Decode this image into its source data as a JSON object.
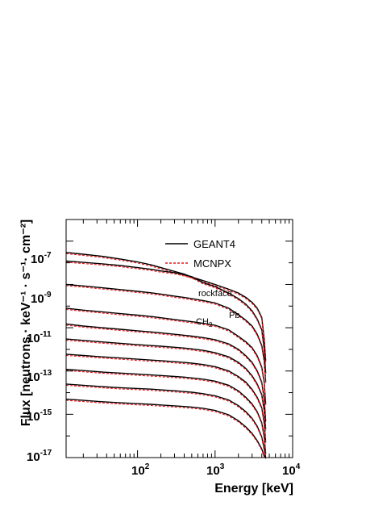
{
  "chart_data": {
    "type": "line",
    "xscale": "log",
    "yscale": "log",
    "xlim": [
      12,
      10000
    ],
    "ylim": [
      1e-17,
      1e-06
    ],
    "x_ticks": [
      {
        "base": "10",
        "exp": "2",
        "value": 100
      },
      {
        "base": "10",
        "exp": "3",
        "value": 1000
      },
      {
        "base": "10",
        "exp": "4",
        "value": 10000
      }
    ],
    "y_ticks": [
      {
        "base": "10",
        "exp": "-7",
        "value": 1e-07
      },
      {
        "base": "10",
        "exp": "-9",
        "value": 1e-09
      },
      {
        "base": "10",
        "exp": "-11",
        "value": 1e-11
      },
      {
        "base": "10",
        "exp": "-13",
        "value": 1e-13
      },
      {
        "base": "10",
        "exp": "-15",
        "value": 1e-15
      },
      {
        "base": "10",
        "exp": "-17",
        "value": 1e-17
      }
    ],
    "xlabel": "Energy [keV]",
    "ylabel": "Flux [neutrons · keV⁻¹ · s⁻¹· cm⁻²]",
    "legend": {
      "placement": "top-right",
      "entries": [
        {
          "label": "GEANT4",
          "style": "solid",
          "color": "#000000"
        },
        {
          "label": "MCNPX",
          "style": "dashed",
          "color": "#e8161b"
        }
      ]
    },
    "annotations": [
      {
        "text": "rockface",
        "x": 620,
        "y": 1e-09
      },
      {
        "text": "Pb",
        "x": 2000,
        "y": 2.2e-10
      },
      {
        "text": "CH",
        "sub": "2",
        "x": 440,
        "y": 8e-11
      }
    ],
    "curve_x": [
      12,
      20,
      35,
      60,
      100,
      150,
      200,
      300,
      400,
      500,
      700,
      1000,
      1500,
      2000,
      2500,
      3000,
      3500,
      4000,
      4300,
      4500
    ],
    "series": [
      {
        "label": "rockface",
        "y": [
          3e-08,
          2.5e-08,
          2e-08,
          1.5e-08,
          1.1e-08,
          8e-09,
          6e-09,
          4e-09,
          3e-09,
          2.2e-09,
          1.5e-09,
          1e-09,
          6e-10,
          4e-10,
          2.5e-10,
          1.5e-10,
          8e-11,
          3e-11,
          3e-12,
          3e-13
        ]
      },
      {
        "y": [
          1.2e-08,
          1.05e-08,
          9e-09,
          7.5e-09,
          6e-09,
          5e-09,
          4.2e-09,
          3.5e-09,
          2.8e-09,
          2.3e-09,
          1.2e-09,
          8e-10,
          4e-10,
          2.2e-10,
          1.2e-10,
          6e-11,
          2.5e-11,
          8e-12,
          1e-12,
          8e-14
        ]
      },
      {
        "y": [
          1e-09,
          8.5e-10,
          7e-10,
          5.8e-10,
          4.8e-10,
          4.1e-10,
          3.6e-10,
          2.9e-10,
          2.5e-10,
          2.2e-10,
          1.8e-10,
          1.4e-10,
          8e-11,
          4e-11,
          2.2e-11,
          1.2e-11,
          5e-12,
          1.5e-12,
          3e-13,
          3e-14
        ]
      },
      {
        "y": [
          8e-11,
          6.5e-11,
          5.4e-11,
          4.5e-11,
          3.8e-11,
          3.3e-11,
          2.9e-11,
          2.4e-11,
          2.1e-11,
          1.9e-11,
          1.6e-11,
          1.3e-11,
          8e-12,
          4e-12,
          2.2e-12,
          1.2e-12,
          5e-13,
          1.5e-13,
          3e-14,
          3e-15
        ]
      },
      {
        "y": [
          1.5e-11,
          1.2e-11,
          1e-11,
          8.5e-12,
          7.2e-12,
          6.4e-12,
          5.8e-12,
          5e-12,
          4.5e-12,
          4.1e-12,
          3.5e-12,
          2.8e-12,
          1.8e-12,
          1e-12,
          5e-13,
          2.5e-13,
          1e-13,
          3e-14,
          5e-15,
          5e-16
        ]
      },
      {
        "y": [
          3e-12,
          2.6e-12,
          2.2e-12,
          1.9e-12,
          1.65e-12,
          1.5e-12,
          1.4e-12,
          1.25e-12,
          1.15e-12,
          1.05e-12,
          9e-13,
          7e-13,
          4.5e-13,
          2.5e-13,
          1.3e-13,
          6e-14,
          2.5e-14,
          8e-15,
          1.5e-15,
          2e-16
        ]
      },
      {
        "y": [
          6e-13,
          5.2e-13,
          4.5e-13,
          4e-13,
          3.5e-13,
          3.2e-13,
          3e-13,
          2.7e-13,
          2.5e-13,
          2.3e-13,
          2e-13,
          1.6e-13,
          1e-13,
          5.5e-14,
          3e-14,
          1.4e-14,
          6e-15,
          2e-15,
          4e-16,
          5e-17
        ]
      },
      {
        "y": [
          1.2e-13,
          1.05e-13,
          9e-14,
          8e-14,
          7.2e-14,
          6.6e-14,
          6.2e-14,
          5.6e-14,
          5.2e-14,
          4.8e-14,
          4.2e-14,
          3.4e-14,
          2.2e-14,
          1.2e-14,
          6e-15,
          3e-15,
          1.3e-15,
          4e-16,
          9e-17,
          1.5e-17
        ]
      },
      {
        "y": [
          2.5e-14,
          2.2e-14,
          1.9e-14,
          1.7e-14,
          1.55e-14,
          1.45e-14,
          1.35e-14,
          1.22e-14,
          1.12e-14,
          1.05e-14,
          9e-15,
          7.2e-15,
          4.6e-15,
          2.5e-15,
          1.3e-15,
          6.5e-16,
          2.8e-16,
          9e-17,
          2.5e-17,
          1e-17
        ]
      },
      {
        "y": [
          5e-15,
          4.4e-15,
          3.8e-15,
          3.4e-15,
          3.1e-15,
          2.9e-15,
          2.7e-15,
          2.45e-15,
          2.3e-15,
          2.15e-15,
          1.9e-15,
          1.5e-15,
          9.5e-16,
          5e-16,
          2.6e-16,
          1.3e-16,
          6e-17,
          2.5e-17,
          1.2e-17,
          1e-17
        ]
      }
    ]
  }
}
